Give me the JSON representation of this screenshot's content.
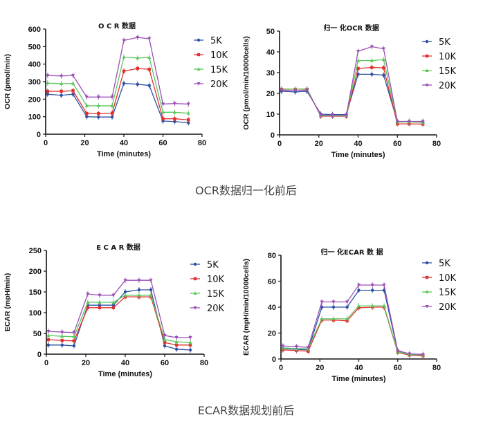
{
  "captions": {
    "ocr": "OCR数据归一化前后",
    "ecar": "ECAR数据规划前后"
  },
  "colors": {
    "5K": "#2a4fa3",
    "10K": "#e03030",
    "15K": "#5cc85c",
    "20K": "#9b4fb5"
  },
  "chart_data": [
    {
      "id": "ocr-raw",
      "type": "line",
      "title": "O C R 数据",
      "xlabel": "Time (minutes)",
      "ylabel": "OCR (pmol/min)",
      "xlim": [
        0,
        80
      ],
      "ylim": [
        0,
        600
      ],
      "xticks": [
        0,
        20,
        40,
        60,
        80
      ],
      "yticks": [
        0,
        100,
        200,
        300,
        400,
        500,
        600
      ],
      "legend": "right",
      "x": [
        1,
        8,
        14,
        21,
        27,
        34,
        40,
        47,
        53,
        60,
        66,
        73
      ],
      "series": [
        {
          "name": "5K",
          "values": [
            228,
            222,
            228,
            100,
            98,
            98,
            290,
            285,
            278,
            75,
            72,
            65
          ]
        },
        {
          "name": "10K",
          "values": [
            245,
            245,
            248,
            118,
            118,
            120,
            360,
            375,
            370,
            88,
            88,
            82
          ]
        },
        {
          "name": "15K",
          "values": [
            292,
            288,
            290,
            162,
            162,
            162,
            440,
            435,
            438,
            125,
            125,
            120
          ]
        },
        {
          "name": "20K",
          "values": [
            335,
            332,
            335,
            212,
            212,
            212,
            535,
            552,
            545,
            172,
            175,
            172
          ]
        }
      ]
    },
    {
      "id": "ocr-norm",
      "type": "line",
      "title": "归一 化OCR 数据",
      "xlabel": "Time (minutes)",
      "ylabel": "OCR (pmol/min/10000cells)",
      "xlim": [
        0,
        80
      ],
      "ylim": [
        0,
        50
      ],
      "xticks": [
        0,
        20,
        40,
        60,
        80
      ],
      "yticks": [
        0,
        10,
        20,
        30,
        40,
        50
      ],
      "legend": "right",
      "x": [
        1,
        8,
        14,
        21,
        27,
        34,
        40,
        47,
        53,
        60,
        66,
        73
      ],
      "series": [
        {
          "name": "5K",
          "values": [
            21,
            20.7,
            21,
            10,
            9.8,
            9.8,
            29.2,
            29.2,
            28.8,
            6.3,
            6.3,
            6.3
          ]
        },
        {
          "name": "10K",
          "values": [
            22,
            22,
            22,
            9,
            9,
            9,
            32,
            32.5,
            32.3,
            5.3,
            5.3,
            5.2
          ]
        },
        {
          "name": "15K",
          "values": [
            22.2,
            22,
            22.2,
            9.2,
            9.2,
            9.2,
            35.8,
            35.8,
            36.3,
            6.2,
            6.2,
            6
          ]
        },
        {
          "name": "20K",
          "values": [
            21.5,
            21.3,
            21.5,
            9.5,
            9.5,
            9.5,
            40.3,
            42.5,
            41.5,
            6.5,
            6.5,
            6.5
          ]
        }
      ]
    },
    {
      "id": "ecar-raw",
      "type": "line",
      "title": "E C A R 数据",
      "xlabel": "Time (minutes)",
      "ylabel": "ECAR (mpH/min)",
      "xlim": [
        0,
        80
      ],
      "ylim": [
        0,
        250
      ],
      "xticks": [
        0,
        20,
        40,
        60,
        80
      ],
      "yticks": [
        0,
        50,
        100,
        150,
        200,
        250
      ],
      "legend": "right",
      "x": [
        1,
        8,
        14,
        21,
        27,
        34,
        40,
        47,
        53,
        60,
        66,
        73
      ],
      "series": [
        {
          "name": "5K",
          "values": [
            22,
            22,
            20,
            118,
            118,
            118,
            150,
            155,
            155,
            20,
            12,
            10
          ]
        },
        {
          "name": "10K",
          "values": [
            35,
            33,
            32,
            112,
            112,
            112,
            138,
            138,
            138,
            28,
            22,
            22
          ]
        },
        {
          "name": "15K",
          "values": [
            45,
            43,
            42,
            125,
            125,
            125,
            142,
            142,
            142,
            35,
            30,
            28
          ]
        },
        {
          "name": "20K",
          "values": [
            55,
            53,
            52,
            145,
            142,
            142,
            178,
            178,
            178,
            45,
            40,
            40
          ]
        }
      ]
    },
    {
      "id": "ecar-norm",
      "type": "line",
      "title": "归一 化ECAR 数 据",
      "xlabel": "Time (minutes)",
      "ylabel": "ECAR (mpH/min/10000cells)",
      "xlim": [
        0,
        80
      ],
      "ylim": [
        0,
        80
      ],
      "xticks": [
        0,
        20,
        40,
        60,
        80
      ],
      "yticks": [
        0,
        20,
        40,
        60,
        80
      ],
      "legend": "right",
      "x": [
        1,
        8,
        14,
        21,
        27,
        34,
        40,
        47,
        53,
        60,
        66,
        73
      ],
      "series": [
        {
          "name": "5K",
          "values": [
            8,
            7.5,
            7,
            40,
            40,
            40,
            53,
            53,
            53,
            6,
            3,
            2.5
          ]
        },
        {
          "name": "10K",
          "values": [
            7,
            6.5,
            6,
            30,
            30,
            29.5,
            39.5,
            40,
            40,
            5,
            3,
            2.5
          ]
        },
        {
          "name": "15K",
          "values": [
            8.5,
            8,
            8,
            31,
            31,
            31,
            41,
            41,
            41,
            5.5,
            3.5,
            3
          ]
        },
        {
          "name": "20K",
          "values": [
            10,
            9.5,
            9,
            44,
            44,
            44,
            57,
            57,
            57,
            6.5,
            4,
            3.5
          ]
        }
      ]
    }
  ]
}
